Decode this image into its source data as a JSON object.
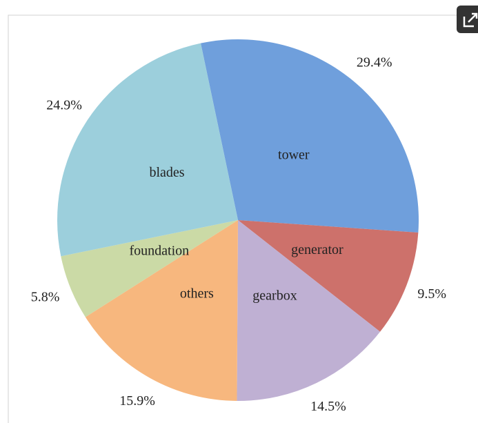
{
  "chart_data": {
    "type": "pie",
    "categories": [
      "tower",
      "generator",
      "gearbox",
      "others",
      "foundation",
      "blades"
    ],
    "values": [
      29.4,
      9.5,
      14.5,
      15.9,
      5.8,
      24.9
    ],
    "value_labels": [
      "29.4%",
      "9.5%",
      "14.5%",
      "15.9%",
      "5.8%",
      "24.9%"
    ],
    "colors": [
      "#6f9fdc",
      "#cd716b",
      "#bfb0d3",
      "#f7b77e",
      "#cbdaa6",
      "#9ccfdc"
    ]
  }
}
